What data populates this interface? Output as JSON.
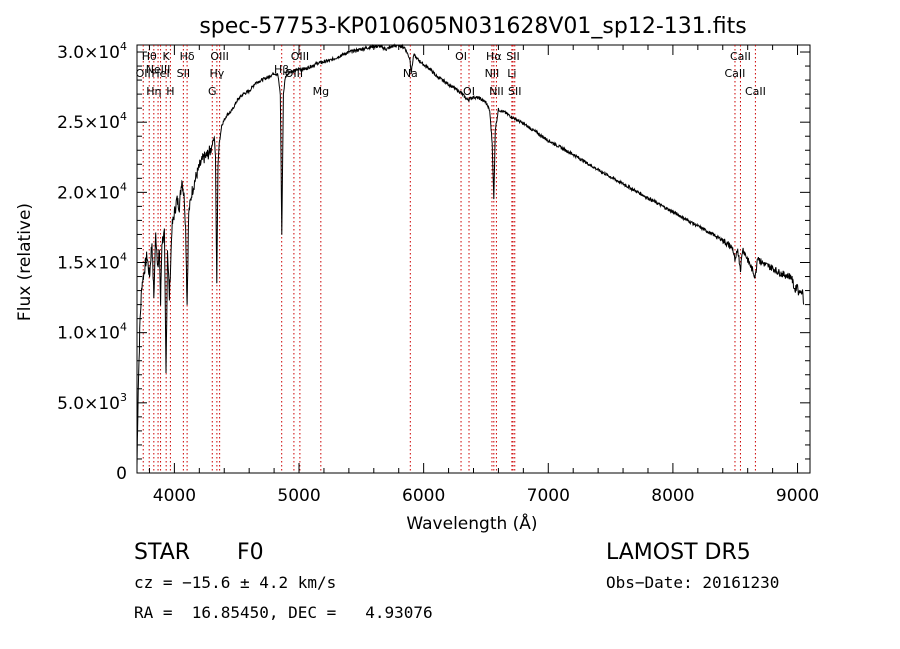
{
  "chart_data": {
    "type": "line",
    "title": "spec-57753-KP010605N031628V01_sp12-131.fits",
    "xlabel": "Wavelength (Å)",
    "ylabel": "Flux (relative)",
    "xlim": [
      3700,
      9100
    ],
    "ylim": [
      0,
      30500
    ],
    "x_ticks": [
      {
        "value": 4000,
        "label": "4000"
      },
      {
        "value": 5000,
        "label": "5000"
      },
      {
        "value": 6000,
        "label": "6000"
      },
      {
        "value": 7000,
        "label": "7000"
      },
      {
        "value": 8000,
        "label": "8000"
      },
      {
        "value": 9000,
        "label": "9000"
      }
    ],
    "y_ticks": [
      {
        "value": 0,
        "mant": "0",
        "exp": ""
      },
      {
        "value": 5000,
        "mant": "5.0×10",
        "exp": "3"
      },
      {
        "value": 10000,
        "mant": "1.0×10",
        "exp": "4"
      },
      {
        "value": 15000,
        "mant": "1.5×10",
        "exp": "4"
      },
      {
        "value": 20000,
        "mant": "2.0×10",
        "exp": "4"
      },
      {
        "value": 25000,
        "mant": "2.5×10",
        "exp": "4"
      },
      {
        "value": 30000,
        "mant": "3.0×10",
        "exp": "4"
      }
    ],
    "series": [
      {
        "x": [
          3700,
          3710,
          3725,
          3740,
          3760,
          3780,
          3800,
          3820,
          3835,
          3850,
          3870,
          3880,
          3889,
          3900,
          3920,
          3933,
          3945,
          3960,
          3970,
          3980,
          4000,
          4020,
          4040,
          4060,
          4080,
          4090,
          4102,
          4115,
          4140,
          4170,
          4200,
          4230,
          4260,
          4290,
          4320,
          4330,
          4340,
          4350,
          4360,
          4380,
          4420,
          4460,
          4500,
          4550,
          4600,
          4650,
          4700,
          4750,
          4800,
          4830,
          4850,
          4862,
          4875,
          4890,
          4920,
          4960,
          5000,
          5050,
          5100,
          5150,
          5200,
          5250,
          5300,
          5350,
          5400,
          5450,
          5500,
          5550,
          5600,
          5650,
          5700,
          5750,
          5800,
          5850,
          5890,
          5900,
          5920,
          5950,
          6000,
          6050,
          6100,
          6150,
          6200,
          6250,
          6300,
          6350,
          6400,
          6450,
          6500,
          6530,
          6550,
          6563,
          6575,
          6600,
          6650,
          6700,
          6800,
          6900,
          7000,
          7200,
          7400,
          7600,
          7800,
          8000,
          8200,
          8400,
          8480,
          8500,
          8520,
          8542,
          8560,
          8600,
          8662,
          8680,
          8700,
          8750,
          8800,
          8850,
          8900,
          8950,
          8980,
          9000,
          9010,
          9020,
          9030,
          9040,
          9050
        ],
        "y": [
          500,
          6000,
          11000,
          13500,
          14500,
          15500,
          14000,
          16500,
          12500,
          17000,
          14500,
          16000,
          12000,
          16500,
          17000,
          7000,
          16000,
          12500,
          15000,
          17500,
          18500,
          19500,
          19000,
          21000,
          19500,
          17500,
          12000,
          18500,
          20000,
          21000,
          21800,
          22400,
          22600,
          23000,
          24000,
          22500,
          13500,
          22000,
          23500,
          24800,
          25500,
          25800,
          26500,
          27000,
          27200,
          27800,
          28000,
          28200,
          28500,
          28400,
          27000,
          17000,
          27000,
          28200,
          28600,
          28600,
          28800,
          28800,
          29000,
          29200,
          29300,
          29400,
          29600,
          29800,
          30000,
          30100,
          30200,
          30300,
          30400,
          30400,
          30200,
          30400,
          30500,
          30300,
          29500,
          28500,
          29800,
          29500,
          29100,
          28800,
          28300,
          28000,
          27700,
          27400,
          27100,
          26600,
          26800,
          26700,
          26400,
          25800,
          23500,
          19500,
          24500,
          25900,
          25700,
          25400,
          24900,
          24300,
          23700,
          22700,
          21600,
          20600,
          19600,
          18600,
          17600,
          16600,
          16000,
          15000,
          16000,
          14500,
          16000,
          15200,
          14000,
          15500,
          15100,
          14800,
          14600,
          14300,
          14100,
          14000,
          13000,
          13500,
          12600,
          13200,
          12800,
          13000,
          12000
        ]
      }
    ],
    "lines": [
      {
        "x": 3750,
        "label": "OII",
        "row": 2
      },
      {
        "x": 3798,
        "label": "Hθ",
        "row": 1
      },
      {
        "x": 3835,
        "label": "Hη",
        "row": 3
      },
      {
        "x": 3869,
        "label": "NeIII",
        "row": 0
      },
      {
        "x": 3889,
        "label": "HeI",
        "row": 2
      },
      {
        "x": 3934,
        "label": "K",
        "row": 1
      },
      {
        "x": 3968,
        "label": "H",
        "row": 3
      },
      {
        "x": 4072,
        "label": "SII",
        "row": 2
      },
      {
        "x": 4102,
        "label": "Hδ",
        "row": 1
      },
      {
        "x": 4304,
        "label": "G",
        "row": 3
      },
      {
        "x": 4341,
        "label": "Hγ",
        "row": 2
      },
      {
        "x": 4363,
        "label": "OIII",
        "row": 1
      },
      {
        "x": 4861,
        "label": "Hβ",
        "row": 0
      },
      {
        "x": 4959,
        "label": "OIII",
        "row": 2
      },
      {
        "x": 5007,
        "label": "OIII",
        "row": 1
      },
      {
        "x": 5175,
        "label": "Mg",
        "row": 3
      },
      {
        "x": 5893,
        "label": "Na",
        "row": 2
      },
      {
        "x": 6300,
        "label": "OI",
        "row": 1
      },
      {
        "x": 6364,
        "label": "OI",
        "row": 3
      },
      {
        "x": 6548,
        "label": "NII",
        "row": 2
      },
      {
        "x": 6563,
        "label": "Hα",
        "row": 1
      },
      {
        "x": 6584,
        "label": "NII",
        "row": 3
      },
      {
        "x": 6708,
        "label": "Li",
        "row": 2
      },
      {
        "x": 6717,
        "label": "SII",
        "row": 1
      },
      {
        "x": 6731,
        "label": "SII",
        "row": 3
      },
      {
        "x": 8498,
        "label": "CaII",
        "row": 2
      },
      {
        "x": 8542,
        "label": "CaII",
        "row": 1
      },
      {
        "x": 8662,
        "label": "CaII",
        "row": 3
      }
    ],
    "legend": "none",
    "grid": false
  },
  "info": {
    "class": "STAR",
    "subclass": "F0",
    "survey": "LAMOST DR5",
    "cz": "cz = −15.6 ± 4.2 km/s",
    "obs_date": "Obs−Date: 20161230",
    "coords": "RA =  16.85450, DEC =   4.93076"
  }
}
